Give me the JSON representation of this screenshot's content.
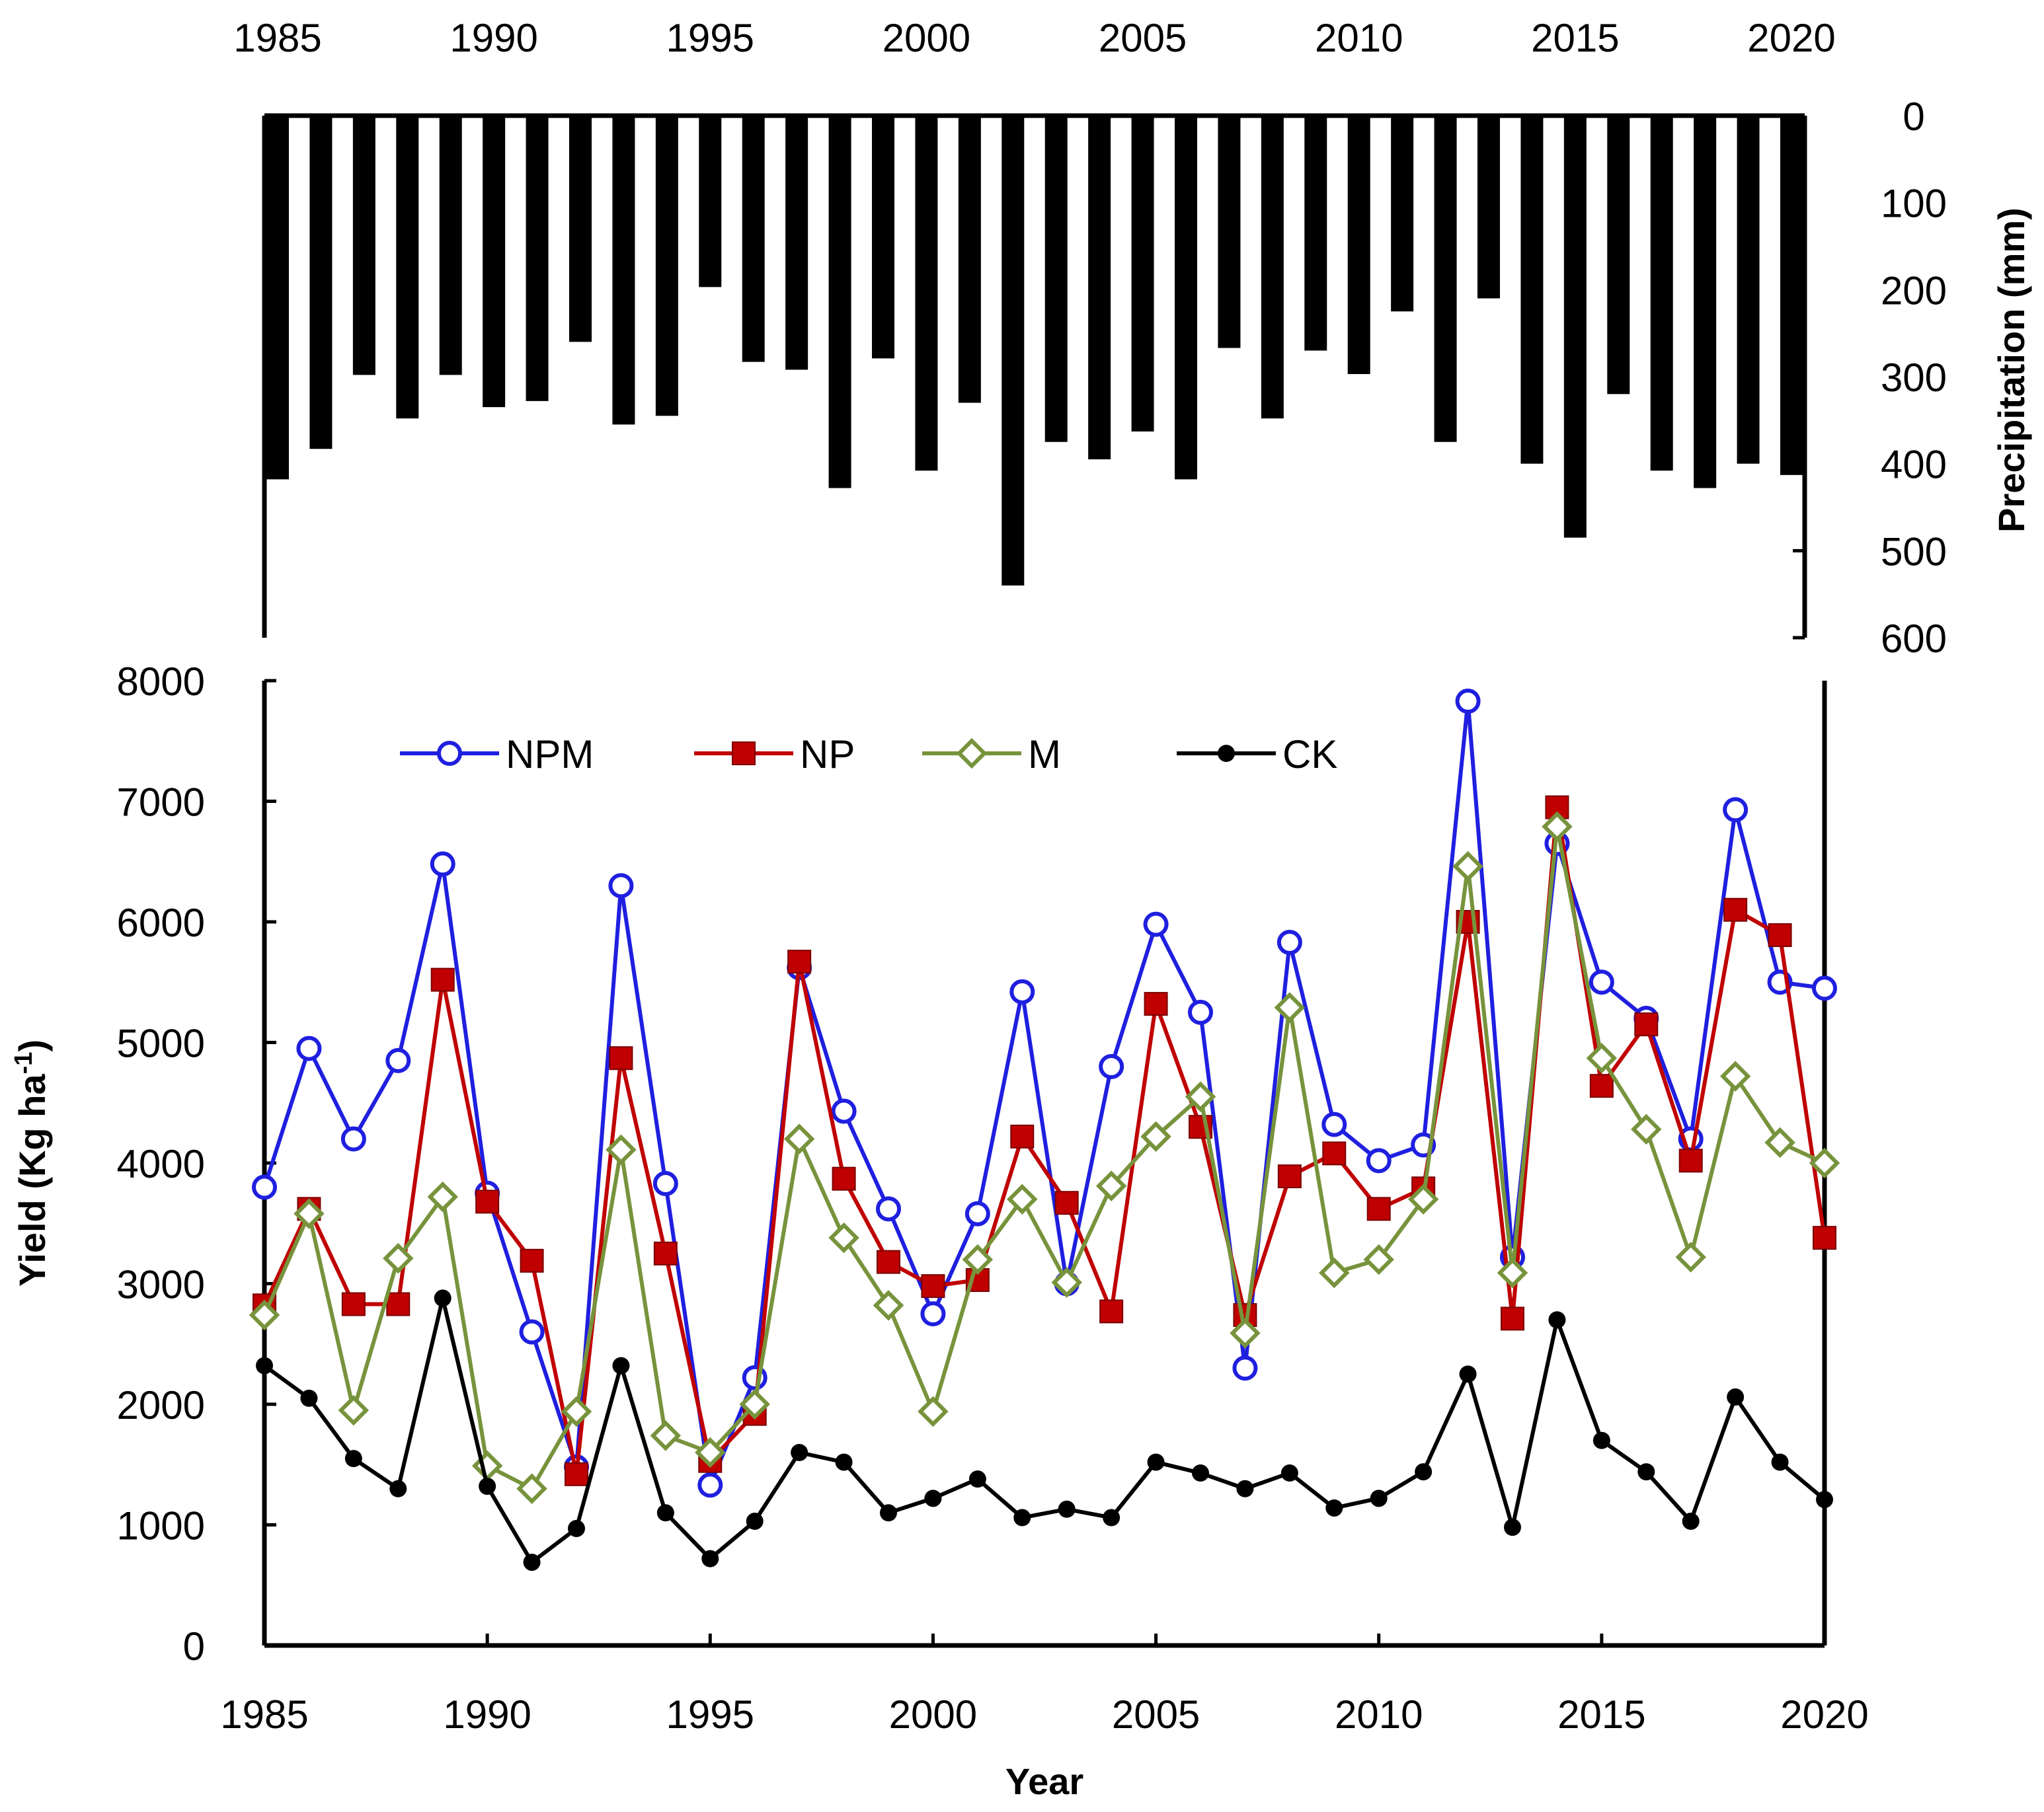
{
  "chart_data": [
    {
      "type": "bar",
      "orientation": "hanging-from-top",
      "title": "",
      "xlabel": "",
      "ylabel": "Precipitation (mm)",
      "ylabel_position": "right",
      "xaxis_position": "top",
      "categories": [
        1985,
        1986,
        1987,
        1988,
        1989,
        1990,
        1991,
        1992,
        1993,
        1994,
        1995,
        1996,
        1997,
        1998,
        1999,
        2000,
        2001,
        2002,
        2003,
        2004,
        2005,
        2006,
        2007,
        2008,
        2009,
        2010,
        2011,
        2012,
        2013,
        2014,
        2015,
        2016,
        2017,
        2018,
        2019,
        2020
      ],
      "values": [
        418,
        383,
        298,
        348,
        298,
        335,
        328,
        260,
        355,
        345,
        197,
        283,
        292,
        428,
        279,
        408,
        330,
        540,
        375,
        395,
        363,
        418,
        267,
        348,
        270,
        297,
        225,
        375,
        210,
        400,
        485,
        320,
        408,
        428,
        400,
        413
      ],
      "ylim": [
        600,
        0
      ],
      "yticks": [
        "0",
        "100",
        "200",
        "300",
        "400",
        "500",
        "600"
      ],
      "xticks": [
        "1985",
        "1990",
        "1995",
        "2000",
        "2005",
        "2010",
        "2015",
        "2020"
      ],
      "colors": {
        "bar": "#000000"
      }
    },
    {
      "type": "line",
      "title": "",
      "xlabel": "Year",
      "ylabel": "Yield (Kg ha",
      "ylabel_superscript": "-1",
      "ylabel_suffix": ")",
      "x": [
        1985,
        1986,
        1987,
        1988,
        1989,
        1990,
        1991,
        1992,
        1993,
        1994,
        1995,
        1996,
        1997,
        1998,
        1999,
        2000,
        2001,
        2002,
        2003,
        2004,
        2005,
        2006,
        2007,
        2008,
        2009,
        2010,
        2011,
        2012,
        2013,
        2014,
        2015,
        2016,
        2017,
        2018,
        2019,
        2020
      ],
      "xlim": [
        1985,
        2020
      ],
      "ylim": [
        0,
        8000
      ],
      "xticks": [
        "1985",
        "1990",
        "1995",
        "2000",
        "2005",
        "2010",
        "2015",
        "2020"
      ],
      "yticks": [
        "0",
        "1000",
        "2000",
        "3000",
        "4000",
        "5000",
        "6000",
        "7000",
        "8000"
      ],
      "legend_position": "top-left",
      "series": [
        {
          "name": "NPM",
          "color": "#1f1fe0",
          "marker": "open-circle",
          "values": [
            3800,
            4950,
            4200,
            4850,
            6480,
            3750,
            2600,
            1480,
            6300,
            3830,
            1330,
            2220,
            5620,
            4430,
            3620,
            2750,
            3580,
            5420,
            3000,
            4800,
            5980,
            5250,
            2300,
            5830,
            4320,
            4020,
            4150,
            7830,
            3220,
            6650,
            5500,
            5200,
            4200,
            6930,
            5500,
            5450
          ]
        },
        {
          "name": "NP",
          "color": "#c00000",
          "marker": "filled-square",
          "values": [
            2820,
            3620,
            2830,
            2830,
            5520,
            3680,
            3190,
            1420,
            4870,
            3250,
            1530,
            1920,
            5670,
            3870,
            3180,
            2980,
            3030,
            4220,
            3670,
            2770,
            5320,
            4300,
            2740,
            3890,
            4080,
            3620,
            3790,
            6000,
            2710,
            6950,
            4640,
            5150,
            4020,
            6100,
            5890,
            3380
          ]
        },
        {
          "name": "M",
          "color": "#77933c",
          "marker": "open-diamond",
          "values": [
            2740,
            3580,
            1950,
            3210,
            3720,
            1490,
            1300,
            1940,
            4110,
            1740,
            1600,
            2000,
            4200,
            3380,
            2820,
            1940,
            3200,
            3700,
            3010,
            3810,
            4220,
            4550,
            2590,
            5290,
            3090,
            3200,
            3700,
            6460,
            3090,
            6790,
            4870,
            4280,
            3220,
            4720,
            4170,
            4000
          ]
        },
        {
          "name": "CK",
          "color": "#000000",
          "marker": "filled-circle",
          "values": [
            2320,
            2050,
            1550,
            1300,
            2880,
            1320,
            690,
            970,
            2320,
            1100,
            720,
            1030,
            1600,
            1520,
            1100,
            1220,
            1380,
            1060,
            1130,
            1060,
            1520,
            1430,
            1300,
            1430,
            1140,
            1220,
            1440,
            2250,
            980,
            2700,
            1700,
            1440,
            1030,
            2060,
            1520,
            1210
          ]
        }
      ]
    }
  ]
}
